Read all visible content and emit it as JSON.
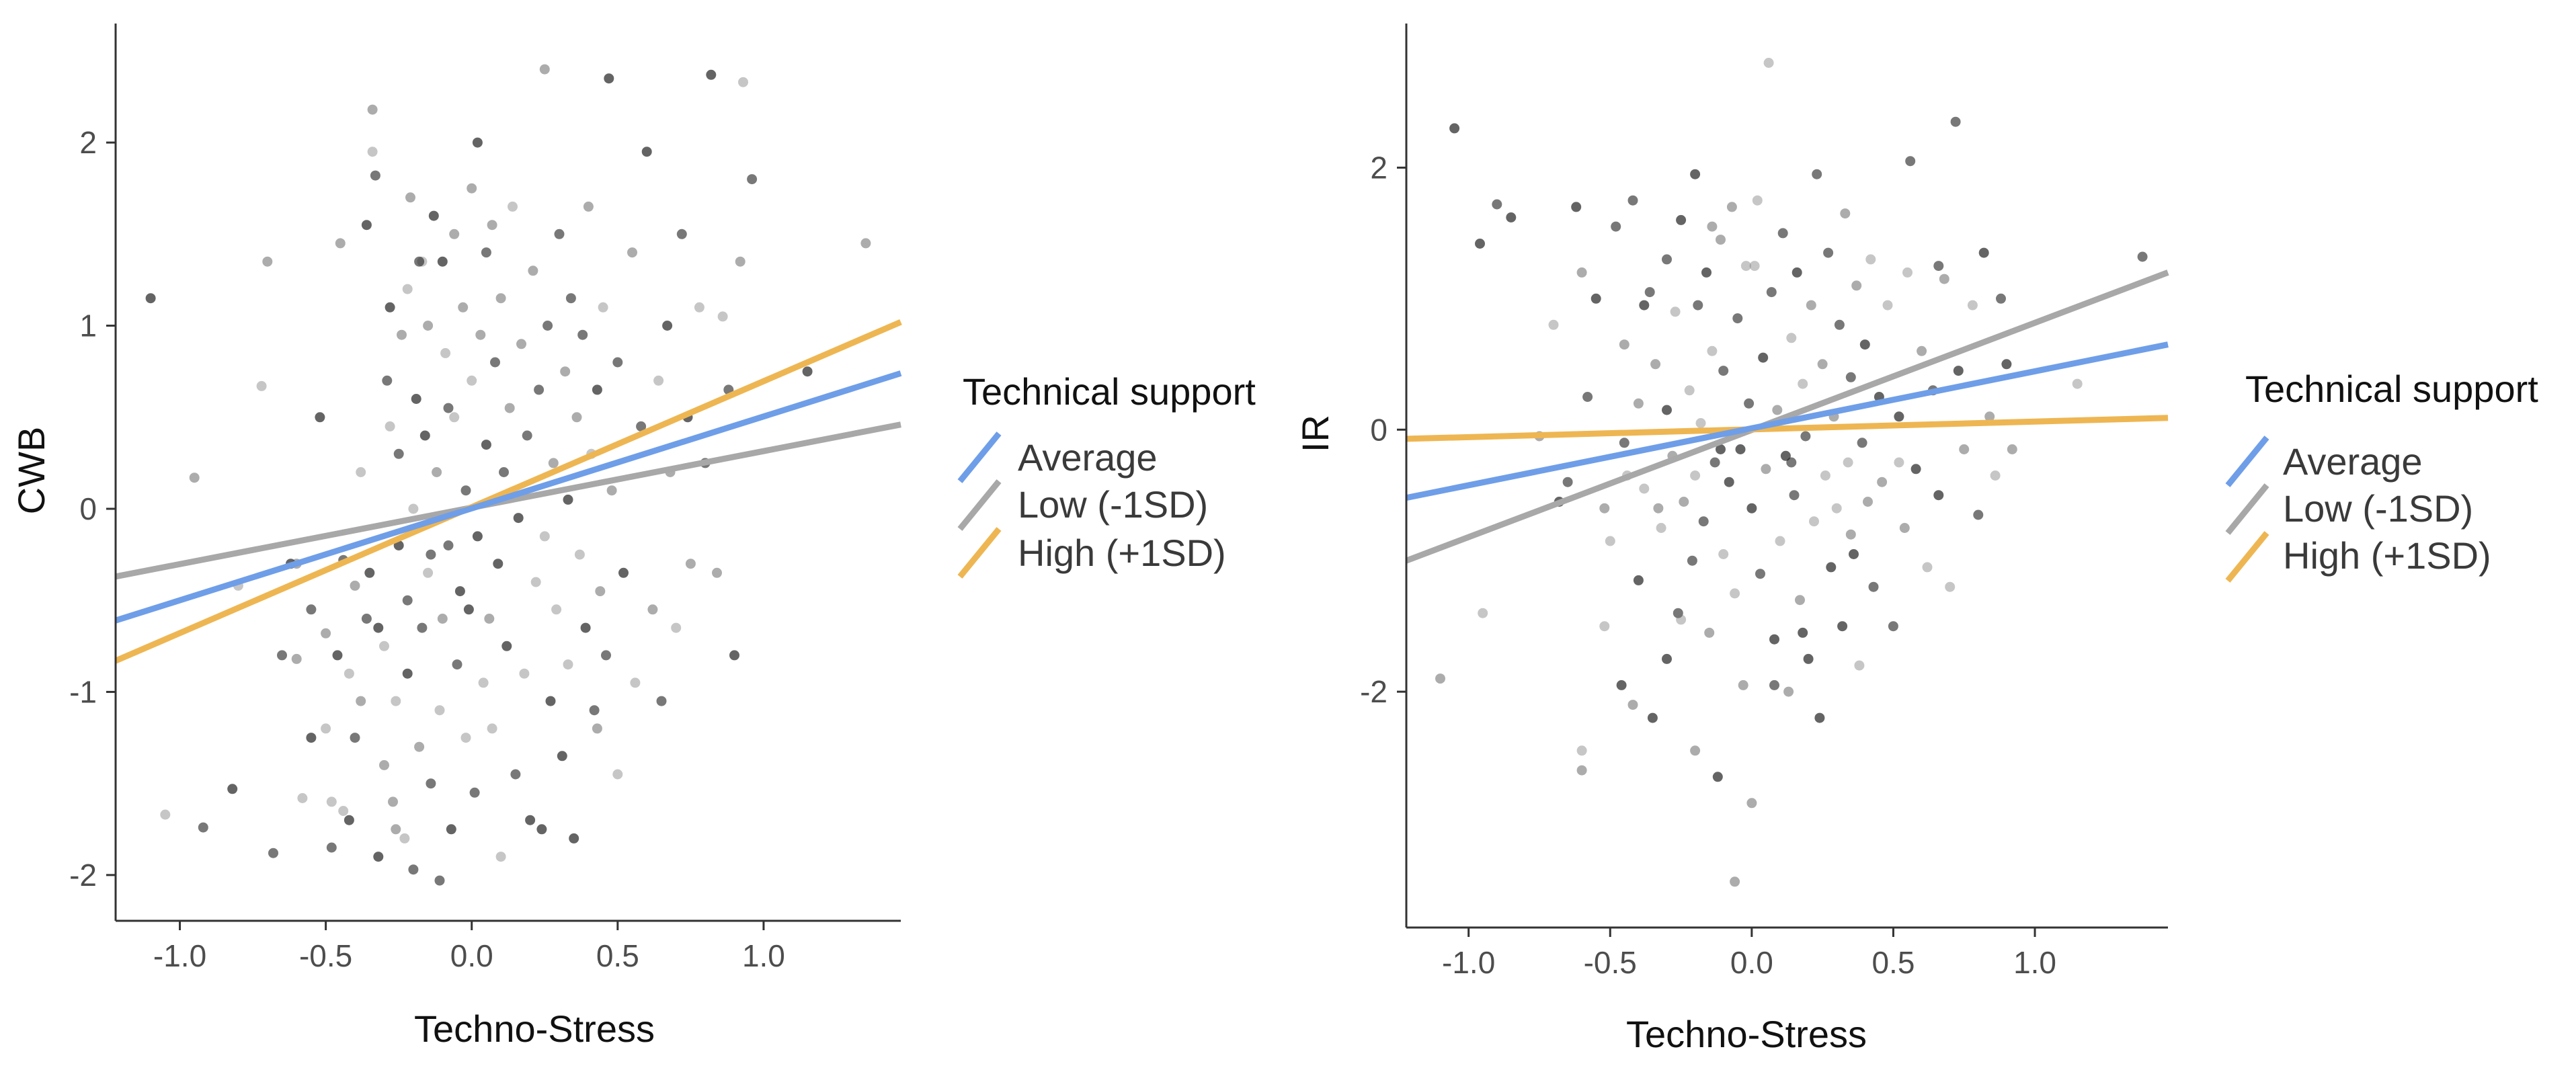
{
  "chart_data": [
    {
      "type": "scatter",
      "title": "",
      "xlabel": "Techno-Stress",
      "ylabel": "CWB",
      "xlim": [
        -1.22,
        1.47
      ],
      "ylim": [
        -2.25,
        2.65
      ],
      "xticks": [
        -1.0,
        -0.5,
        0.0,
        0.5,
        1.0
      ],
      "xtick_labels": [
        "-1.0",
        "-0.5",
        "0.0",
        "0.5",
        "1.0"
      ],
      "yticks": [
        -2,
        -1,
        0,
        1,
        2
      ],
      "ytick_labels": [
        "-2",
        "-1",
        "0",
        "1",
        "2"
      ],
      "legend": {
        "title": "Technical support",
        "placement": "right",
        "entries": [
          {
            "label": "Average",
            "color": "#6f9ee8"
          },
          {
            "label": "Low (-1SD)",
            "color": "#a8a8a8"
          },
          {
            "label": "High (+1SD)",
            "color": "#eeb652"
          }
        ]
      },
      "series": [
        {
          "name": "Average",
          "x": [
            -1.22,
            1.47
          ],
          "y": [
            -0.61,
            0.74
          ]
        },
        {
          "name": "Low (-1SD)",
          "x": [
            -1.22,
            1.47
          ],
          "y": [
            -0.37,
            0.46
          ]
        },
        {
          "name": "High (+1SD)",
          "x": [
            -1.22,
            1.47
          ],
          "y": [
            -0.83,
            1.02
          ]
        }
      ],
      "points": [
        [
          -1.1,
          1.15
        ],
        [
          -0.95,
          0.17
        ],
        [
          -1.05,
          -1.67
        ],
        [
          -0.92,
          -1.74
        ],
        [
          -0.82,
          -1.53
        ],
        [
          -0.7,
          1.35
        ],
        [
          -0.72,
          0.67
        ],
        [
          -0.68,
          -1.88
        ],
        [
          -0.62,
          -0.3
        ],
        [
          -0.6,
          -0.82
        ],
        [
          -0.58,
          -1.58
        ],
        [
          -0.55,
          -0.55
        ],
        [
          -0.52,
          0.5
        ],
        [
          -0.5,
          -0.68
        ],
        [
          -0.5,
          -1.2
        ],
        [
          -0.48,
          -1.85
        ],
        [
          -0.46,
          -0.8
        ],
        [
          -0.45,
          1.45
        ],
        [
          -0.42,
          -0.9
        ],
        [
          -0.4,
          -1.25
        ],
        [
          -0.42,
          -1.7
        ],
        [
          -0.4,
          -0.42
        ],
        [
          -0.38,
          0.2
        ],
        [
          -0.36,
          -0.6
        ],
        [
          -0.35,
          -0.35
        ],
        [
          -0.34,
          2.18
        ],
        [
          -0.34,
          1.95
        ],
        [
          -0.33,
          1.82
        ],
        [
          -0.32,
          -1.9
        ],
        [
          -0.3,
          -1.4
        ],
        [
          -0.3,
          -0.75
        ],
        [
          -0.29,
          0.7
        ],
        [
          -0.28,
          1.1
        ],
        [
          -0.27,
          -1.6
        ],
        [
          -0.26,
          -1.05
        ],
        [
          -0.25,
          0.3
        ],
        [
          -0.25,
          -0.2
        ],
        [
          -0.24,
          0.95
        ],
        [
          -0.23,
          -1.8
        ],
        [
          -0.22,
          -0.5
        ],
        [
          -0.22,
          -0.9
        ],
        [
          -0.21,
          1.7
        ],
        [
          -0.2,
          0.0
        ],
        [
          -0.2,
          -1.97
        ],
        [
          -0.19,
          0.6
        ],
        [
          -0.18,
          -1.3
        ],
        [
          -0.17,
          1.35
        ],
        [
          -0.17,
          -0.65
        ],
        [
          -0.16,
          0.4
        ],
        [
          -0.15,
          1.0
        ],
        [
          -0.15,
          -0.35
        ],
        [
          -0.14,
          -1.5
        ],
        [
          -0.13,
          1.6
        ],
        [
          -0.12,
          0.2
        ],
        [
          -0.11,
          -1.1
        ],
        [
          -0.11,
          -2.03
        ],
        [
          -0.1,
          1.35
        ],
        [
          -0.1,
          -0.6
        ],
        [
          -0.09,
          0.85
        ],
        [
          -0.08,
          -0.2
        ],
        [
          -0.07,
          -1.75
        ],
        [
          -0.06,
          1.5
        ],
        [
          -0.06,
          0.5
        ],
        [
          -0.05,
          -0.85
        ],
        [
          -0.04,
          -0.45
        ],
        [
          -0.03,
          1.1
        ],
        [
          -0.02,
          -1.25
        ],
        [
          -0.02,
          0.1
        ],
        [
          -0.01,
          -0.55
        ],
        [
          0.0,
          1.75
        ],
        [
          0.0,
          0.7
        ],
        [
          0.01,
          -1.55
        ],
        [
          0.02,
          -0.15
        ],
        [
          0.03,
          0.95
        ],
        [
          0.04,
          -0.95
        ],
        [
          0.05,
          1.4
        ],
        [
          0.05,
          0.35
        ],
        [
          0.06,
          -0.6
        ],
        [
          0.07,
          -1.2
        ],
        [
          0.08,
          0.8
        ],
        [
          0.09,
          -0.3
        ],
        [
          0.1,
          1.15
        ],
        [
          0.1,
          -1.9
        ],
        [
          0.11,
          0.2
        ],
        [
          0.12,
          -0.75
        ],
        [
          0.13,
          0.55
        ],
        [
          0.14,
          1.65
        ],
        [
          0.15,
          -1.45
        ],
        [
          0.16,
          -0.05
        ],
        [
          0.17,
          0.9
        ],
        [
          0.18,
          -0.9
        ],
        [
          0.19,
          0.4
        ],
        [
          0.2,
          -1.7
        ],
        [
          0.21,
          1.3
        ],
        [
          0.22,
          -0.4
        ],
        [
          0.23,
          0.65
        ],
        [
          0.24,
          -1.75
        ],
        [
          0.25,
          2.4
        ],
        [
          0.25,
          -0.15
        ],
        [
          0.26,
          1.0
        ],
        [
          0.27,
          -1.05
        ],
        [
          0.28,
          0.25
        ],
        [
          0.29,
          -0.55
        ],
        [
          0.3,
          1.5
        ],
        [
          0.31,
          -1.35
        ],
        [
          0.32,
          0.75
        ],
        [
          0.33,
          -0.85
        ],
        [
          0.34,
          1.15
        ],
        [
          0.35,
          -1.8
        ],
        [
          0.36,
          0.5
        ],
        [
          0.37,
          -0.25
        ],
        [
          0.38,
          0.95
        ],
        [
          0.39,
          -0.65
        ],
        [
          0.4,
          1.65
        ],
        [
          0.41,
          0.3
        ],
        [
          0.42,
          -1.1
        ],
        [
          0.43,
          0.65
        ],
        [
          0.44,
          -0.45
        ],
        [
          0.45,
          1.1
        ],
        [
          0.46,
          -0.8
        ],
        [
          0.47,
          2.35
        ],
        [
          0.48,
          0.1
        ],
        [
          0.5,
          -1.45
        ],
        [
          0.5,
          0.8
        ],
        [
          0.52,
          -0.35
        ],
        [
          0.55,
          1.4
        ],
        [
          0.56,
          -0.95
        ],
        [
          0.58,
          0.45
        ],
        [
          0.6,
          1.95
        ],
        [
          0.62,
          -0.55
        ],
        [
          0.64,
          0.7
        ],
        [
          0.65,
          -1.05
        ],
        [
          0.67,
          1.0
        ],
        [
          0.68,
          0.2
        ],
        [
          0.7,
          -0.65
        ],
        [
          0.72,
          1.5
        ],
        [
          0.74,
          0.5
        ],
        [
          0.75,
          -0.3
        ],
        [
          0.78,
          1.1
        ],
        [
          0.8,
          0.25
        ],
        [
          0.82,
          2.37
        ],
        [
          0.84,
          -0.35
        ],
        [
          0.86,
          1.05
        ],
        [
          0.88,
          0.65
        ],
        [
          0.9,
          -0.8
        ],
        [
          0.92,
          1.35
        ],
        [
          0.93,
          2.33
        ],
        [
          0.96,
          1.8
        ],
        [
          1.15,
          0.75
        ],
        [
          1.35,
          1.45
        ],
        [
          -0.8,
          -0.42
        ],
        [
          -0.65,
          -0.8
        ],
        [
          -0.55,
          -1.25
        ],
        [
          -0.6,
          -0.3
        ],
        [
          -0.48,
          -1.6
        ],
        [
          -0.44,
          -0.28
        ],
        [
          -0.36,
          1.55
        ],
        [
          -0.26,
          -1.75
        ],
        [
          -0.22,
          1.2
        ],
        [
          -0.18,
          1.35
        ],
        [
          -0.32,
          -0.65
        ],
        [
          -0.38,
          -1.05
        ],
        [
          -0.44,
          -1.65
        ],
        [
          -0.14,
          -0.25
        ],
        [
          0.02,
          2.0
        ],
        [
          0.07,
          1.55
        ],
        [
          -0.28,
          0.45
        ],
        [
          -0.08,
          0.55
        ],
        [
          0.33,
          0.05
        ],
        [
          0.43,
          -1.2
        ]
      ]
    },
    {
      "type": "scatter",
      "title": "",
      "xlabel": "Techno-Stress",
      "ylabel": "IR",
      "xlim": [
        -1.22,
        1.47
      ],
      "ylim": [
        -3.8,
        3.1
      ],
      "xticks": [
        -1.0,
        -0.5,
        0.0,
        0.5,
        1.0
      ],
      "xtick_labels": [
        "-1.0",
        "-0.5",
        "0.0",
        "0.5",
        "1.0"
      ],
      "yticks": [
        -2,
        0,
        2
      ],
      "ytick_labels": [
        "-2",
        "0",
        "2"
      ],
      "legend": {
        "title": "Technical support",
        "placement": "right",
        "entries": [
          {
            "label": "Average",
            "color": "#6f9ee8"
          },
          {
            "label": "Low (-1SD)",
            "color": "#a8a8a8"
          },
          {
            "label": "High (+1SD)",
            "color": "#eeb652"
          }
        ]
      },
      "series": [
        {
          "name": "Average",
          "x": [
            -1.22,
            1.47
          ],
          "y": [
            -0.52,
            0.65
          ]
        },
        {
          "name": "Low (-1SD)",
          "x": [
            -1.22,
            1.47
          ],
          "y": [
            -1.0,
            1.2
          ]
        },
        {
          "name": "High (+1SD)",
          "x": [
            -1.22,
            1.47
          ],
          "y": [
            -0.07,
            0.09
          ]
        }
      ],
      "points": [
        [
          -1.05,
          2.3
        ],
        [
          -1.1,
          -1.9
        ],
        [
          -0.95,
          -1.4
        ],
        [
          -0.9,
          1.72
        ],
        [
          -0.85,
          1.62
        ],
        [
          -0.75,
          -0.05
        ],
        [
          -0.7,
          0.8
        ],
        [
          -0.65,
          -0.4
        ],
        [
          -0.62,
          1.7
        ],
        [
          -0.6,
          -2.6
        ],
        [
          -0.6,
          -2.45
        ],
        [
          -0.58,
          0.25
        ],
        [
          -0.55,
          1.0
        ],
        [
          -0.52,
          -0.6
        ],
        [
          -0.5,
          -0.85
        ],
        [
          -0.48,
          1.55
        ],
        [
          -0.46,
          -1.95
        ],
        [
          -0.45,
          0.65
        ],
        [
          -0.44,
          -0.35
        ],
        [
          -0.42,
          1.75
        ],
        [
          -0.4,
          -1.15
        ],
        [
          -0.4,
          0.2
        ],
        [
          -0.38,
          -0.45
        ],
        [
          -0.36,
          1.05
        ],
        [
          -0.35,
          -2.2
        ],
        [
          -0.34,
          0.5
        ],
        [
          -0.32,
          -0.75
        ],
        [
          -0.3,
          1.3
        ],
        [
          -0.3,
          -1.75
        ],
        [
          -0.28,
          -0.2
        ],
        [
          -0.27,
          0.9
        ],
        [
          -0.26,
          -1.4
        ],
        [
          -0.25,
          1.6
        ],
        [
          -0.24,
          -0.55
        ],
        [
          -0.22,
          0.3
        ],
        [
          -0.21,
          -1.0
        ],
        [
          -0.2,
          1.95
        ],
        [
          -0.2,
          -2.45
        ],
        [
          -0.18,
          0.05
        ],
        [
          -0.17,
          -0.7
        ],
        [
          -0.16,
          1.2
        ],
        [
          -0.15,
          -1.55
        ],
        [
          -0.14,
          0.6
        ],
        [
          -0.13,
          -0.25
        ],
        [
          -0.12,
          -2.65
        ],
        [
          -0.11,
          1.45
        ],
        [
          -0.1,
          -0.95
        ],
        [
          -0.1,
          0.45
        ],
        [
          -0.08,
          -0.4
        ],
        [
          -0.07,
          1.7
        ],
        [
          -0.06,
          -1.25
        ],
        [
          -0.05,
          0.85
        ],
        [
          -0.04,
          -0.15
        ],
        [
          -0.03,
          -1.95
        ],
        [
          -0.02,
          1.25
        ],
        [
          -0.01,
          0.2
        ],
        [
          0.0,
          -0.6
        ],
        [
          0.0,
          -2.85
        ],
        [
          0.02,
          1.75
        ],
        [
          0.03,
          -1.1
        ],
        [
          0.04,
          0.55
        ],
        [
          0.05,
          -0.3
        ],
        [
          0.06,
          2.8
        ],
        [
          0.07,
          1.05
        ],
        [
          0.08,
          -1.6
        ],
        [
          0.09,
          0.15
        ],
        [
          0.1,
          -0.85
        ],
        [
          0.11,
          1.5
        ],
        [
          0.12,
          -0.2
        ],
        [
          0.13,
          -2.0
        ],
        [
          0.14,
          0.7
        ],
        [
          0.15,
          -0.5
        ],
        [
          0.16,
          1.2
        ],
        [
          0.17,
          -1.3
        ],
        [
          0.18,
          0.35
        ],
        [
          0.19,
          -0.05
        ],
        [
          0.2,
          -1.75
        ],
        [
          0.21,
          0.95
        ],
        [
          0.22,
          -0.7
        ],
        [
          0.23,
          1.95
        ],
        [
          0.24,
          -2.2
        ],
        [
          0.25,
          0.5
        ],
        [
          0.26,
          -0.35
        ],
        [
          0.27,
          1.35
        ],
        [
          0.28,
          -1.05
        ],
        [
          0.29,
          0.1
        ],
        [
          0.3,
          -0.6
        ],
        [
          0.31,
          0.8
        ],
        [
          0.32,
          -1.5
        ],
        [
          0.33,
          1.65
        ],
        [
          0.34,
          -0.25
        ],
        [
          0.35,
          0.4
        ],
        [
          0.36,
          -0.95
        ],
        [
          0.37,
          1.1
        ],
        [
          0.38,
          -1.8
        ],
        [
          0.39,
          -0.1
        ],
        [
          0.4,
          0.65
        ],
        [
          0.41,
          -0.55
        ],
        [
          0.42,
          1.3
        ],
        [
          0.43,
          -1.2
        ],
        [
          0.45,
          0.25
        ],
        [
          0.46,
          -0.4
        ],
        [
          0.48,
          0.95
        ],
        [
          0.5,
          -1.5
        ],
        [
          0.52,
          0.1
        ],
        [
          0.54,
          -0.75
        ],
        [
          0.55,
          1.2
        ],
        [
          0.56,
          2.05
        ],
        [
          0.58,
          -0.3
        ],
        [
          0.6,
          0.6
        ],
        [
          0.62,
          -1.05
        ],
        [
          0.64,
          0.3
        ],
        [
          0.66,
          -0.5
        ],
        [
          0.68,
          1.15
        ],
        [
          0.7,
          -1.2
        ],
        [
          0.72,
          2.35
        ],
        [
          0.73,
          0.45
        ],
        [
          0.75,
          -0.15
        ],
        [
          0.78,
          0.95
        ],
        [
          0.8,
          -0.65
        ],
        [
          0.82,
          1.35
        ],
        [
          0.84,
          0.1
        ],
        [
          0.86,
          -0.35
        ],
        [
          0.88,
          1.0
        ],
        [
          0.9,
          0.5
        ],
        [
          0.92,
          -0.15
        ],
        [
          1.15,
          0.35
        ],
        [
          1.38,
          1.32
        ],
        [
          -0.96,
          1.42
        ],
        [
          -0.6,
          1.2
        ],
        [
          -0.52,
          -1.5
        ],
        [
          -0.45,
          -0.1
        ],
        [
          -0.38,
          0.95
        ],
        [
          -0.33,
          -0.6
        ],
        [
          -0.25,
          -1.45
        ],
        [
          -0.19,
          0.95
        ],
        [
          -0.11,
          -0.15
        ],
        [
          -0.06,
          -3.45
        ],
        [
          0.01,
          1.25
        ],
        [
          0.14,
          -0.25
        ],
        [
          -0.68,
          -0.55
        ],
        [
          -0.42,
          -2.1
        ],
        [
          -0.2,
          -0.35
        ],
        [
          0.08,
          -1.95
        ],
        [
          0.18,
          -1.55
        ],
        [
          0.35,
          -0.8
        ],
        [
          0.52,
          -0.25
        ],
        [
          0.66,
          1.25
        ],
        [
          -0.3,
          0.15
        ],
        [
          -0.14,
          1.55
        ]
      ]
    }
  ]
}
